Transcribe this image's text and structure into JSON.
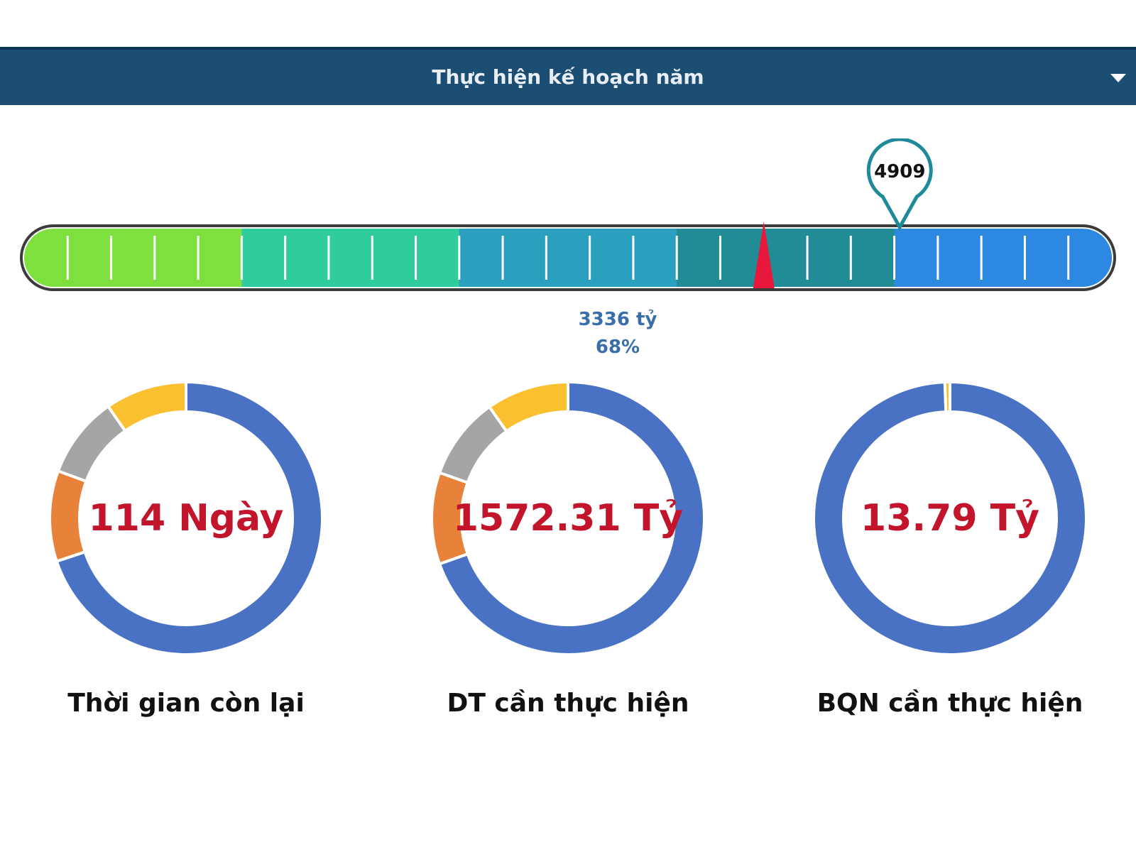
{
  "header": {
    "title": "Thực hiện kế hoạch năm",
    "dropdown_icon": "caret-down-icon"
  },
  "progress": {
    "target_label": "4909",
    "target_value": 4909,
    "actual_label": "3336 tỷ",
    "percent_label": "68%",
    "actual_fraction": 0.68,
    "target_fraction": 0.805,
    "band_colors": [
      "#7de03e",
      "#2fcc9e",
      "#2b9fbe",
      "#218b96",
      "#2c88e0"
    ],
    "pointer_color": "#e8173c",
    "pin_color": "#1f8a99"
  },
  "kpis": [
    {
      "value": "114 Ngày",
      "caption": "Thời gian còn lại",
      "segments": [
        {
          "value": 65,
          "color": "#4a72c4"
        },
        {
          "value": 10,
          "color": "#e8813a"
        },
        {
          "value": 9,
          "color": "#a5a5a5"
        },
        {
          "value": 9,
          "color": "#fbc030"
        }
      ]
    },
    {
      "value": "1572.31 Tỷ",
      "caption": "DT cần thực hiện",
      "segments": [
        {
          "value": 64,
          "color": "#4a72c4"
        },
        {
          "value": 10,
          "color": "#e8813a"
        },
        {
          "value": 9,
          "color": "#a5a5a5"
        },
        {
          "value": 9,
          "color": "#fbc030"
        }
      ]
    },
    {
      "value": "13.79 Tỷ",
      "caption": "BQN cần thực hiện",
      "segments": [
        {
          "value": 99,
          "color": "#4a72c4"
        },
        {
          "value": 0.6,
          "color": "#fbc030"
        }
      ]
    }
  ]
}
